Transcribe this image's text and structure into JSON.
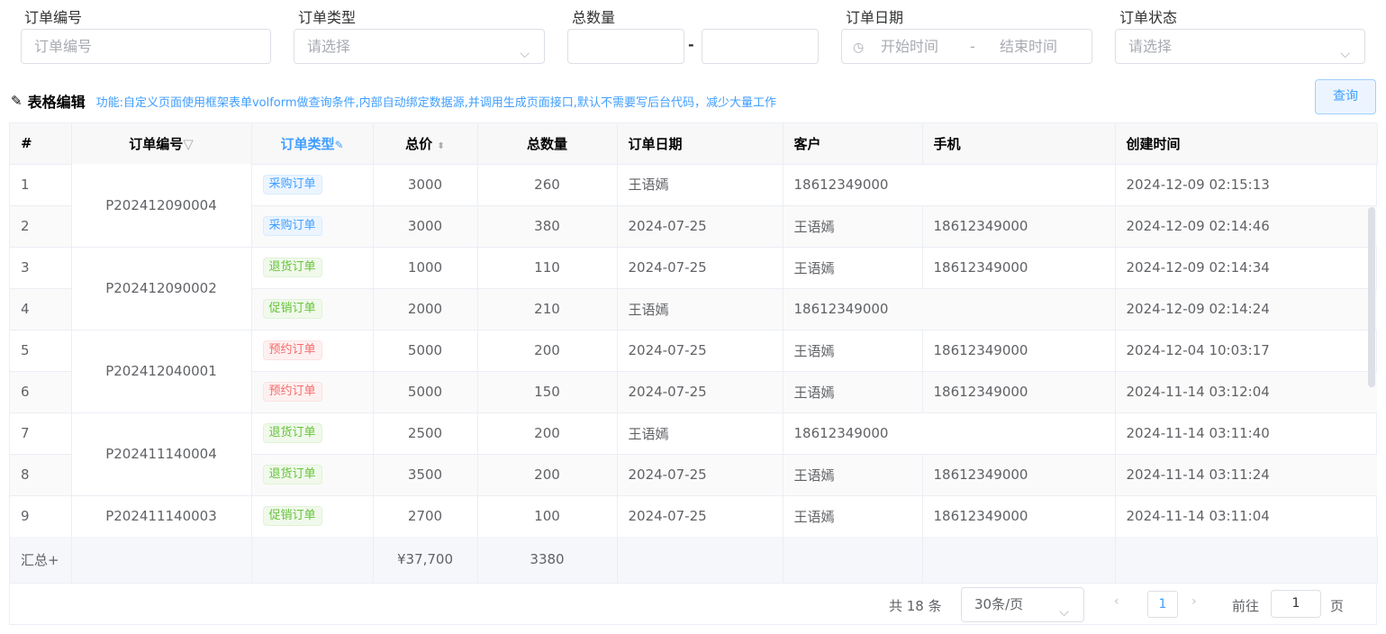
{
  "filters": {
    "order_no": {
      "label": "订单编号",
      "placeholder": "订单编号"
    },
    "order_type": {
      "label": "订单类型",
      "placeholder": "请选择"
    },
    "total_qty": {
      "label": "总数量",
      "separator": "-"
    },
    "order_date": {
      "label": "订单日期",
      "start_placeholder": "开始时间",
      "end_placeholder": "结束时间",
      "separator": "-"
    },
    "order_status": {
      "label": "订单状态",
      "placeholder": "请选择"
    }
  },
  "section": {
    "title": "表格编辑",
    "description": "功能:自定义页面使用框架表单volform做查询条件,内部自动绑定数据源,并调用生成页面接口,默认不需要写后台代码，减少大量工作",
    "query_label": "查询"
  },
  "table": {
    "headers": [
      "#",
      "订单编号",
      "订单类型",
      "总价",
      "总数量",
      "订单日期",
      "客户",
      "手机",
      "创建时间"
    ],
    "rows": [
      {
        "n": "1",
        "order_no": "P202412090004",
        "type": "采购订单",
        "tag": "blue",
        "price": "3000",
        "qty": "260",
        "date": "王语嫣",
        "customer": "18612349000",
        "phone": "",
        "created": "2024-12-09 02:15:13"
      },
      {
        "n": "2",
        "type": "采购订单",
        "tag": "blue",
        "price": "3000",
        "qty": "380",
        "date": "2024-07-25",
        "customer": "王语嫣",
        "phone": "18612349000",
        "created": "2024-12-09 02:14:46"
      },
      {
        "n": "3",
        "order_no": "P202412090002",
        "type": "退货订单",
        "tag": "green",
        "price": "1000",
        "qty": "110",
        "date": "2024-07-25",
        "customer": "王语嫣",
        "phone": "18612349000",
        "created": "2024-12-09 02:14:34"
      },
      {
        "n": "4",
        "type": "促销订单",
        "tag": "green",
        "price": "2000",
        "qty": "210",
        "date": "王语嫣",
        "customer": "18612349000",
        "phone": "",
        "created": "2024-12-09 02:14:24"
      },
      {
        "n": "5",
        "order_no": "P202412040001",
        "type": "预约订单",
        "tag": "red",
        "price": "5000",
        "qty": "200",
        "date": "2024-07-25",
        "customer": "王语嫣",
        "phone": "18612349000",
        "created": "2024-12-04 10:03:17"
      },
      {
        "n": "6",
        "type": "预约订单",
        "tag": "red",
        "price": "5000",
        "qty": "150",
        "date": "2024-07-25",
        "customer": "王语嫣",
        "phone": "18612349000",
        "created": "2024-11-14 03:12:04"
      },
      {
        "n": "7",
        "order_no": "P202411140004",
        "type": "退货订单",
        "tag": "green",
        "price": "2500",
        "qty": "200",
        "date": "王语嫣",
        "customer": "18612349000",
        "phone": "",
        "created": "2024-11-14 03:11:40"
      },
      {
        "n": "8",
        "type": "退货订单",
        "tag": "green",
        "price": "3500",
        "qty": "200",
        "date": "2024-07-25",
        "customer": "王语嫣",
        "phone": "18612349000",
        "created": "2024-11-14 03:11:24"
      },
      {
        "n": "9",
        "order_no": "P202411140003",
        "type": "促销订单",
        "tag": "green",
        "price": "2700",
        "qty": "100",
        "date": "2024-07-25",
        "customer": "王语嫣",
        "phone": "18612349000",
        "created": "2024-11-14 03:11:04"
      }
    ],
    "summary": {
      "label": "汇总+",
      "price": "¥37,700",
      "qty": "3380"
    }
  },
  "tag_colors": {
    "blue": "#409eff",
    "green": "#67c23a",
    "red": "#f56c6c"
  },
  "pagination": {
    "total": "共 18 条",
    "page_size": "30条/页",
    "current_page": "1",
    "goto_label": "前往",
    "goto_value": "1",
    "page_suffix": "页"
  }
}
